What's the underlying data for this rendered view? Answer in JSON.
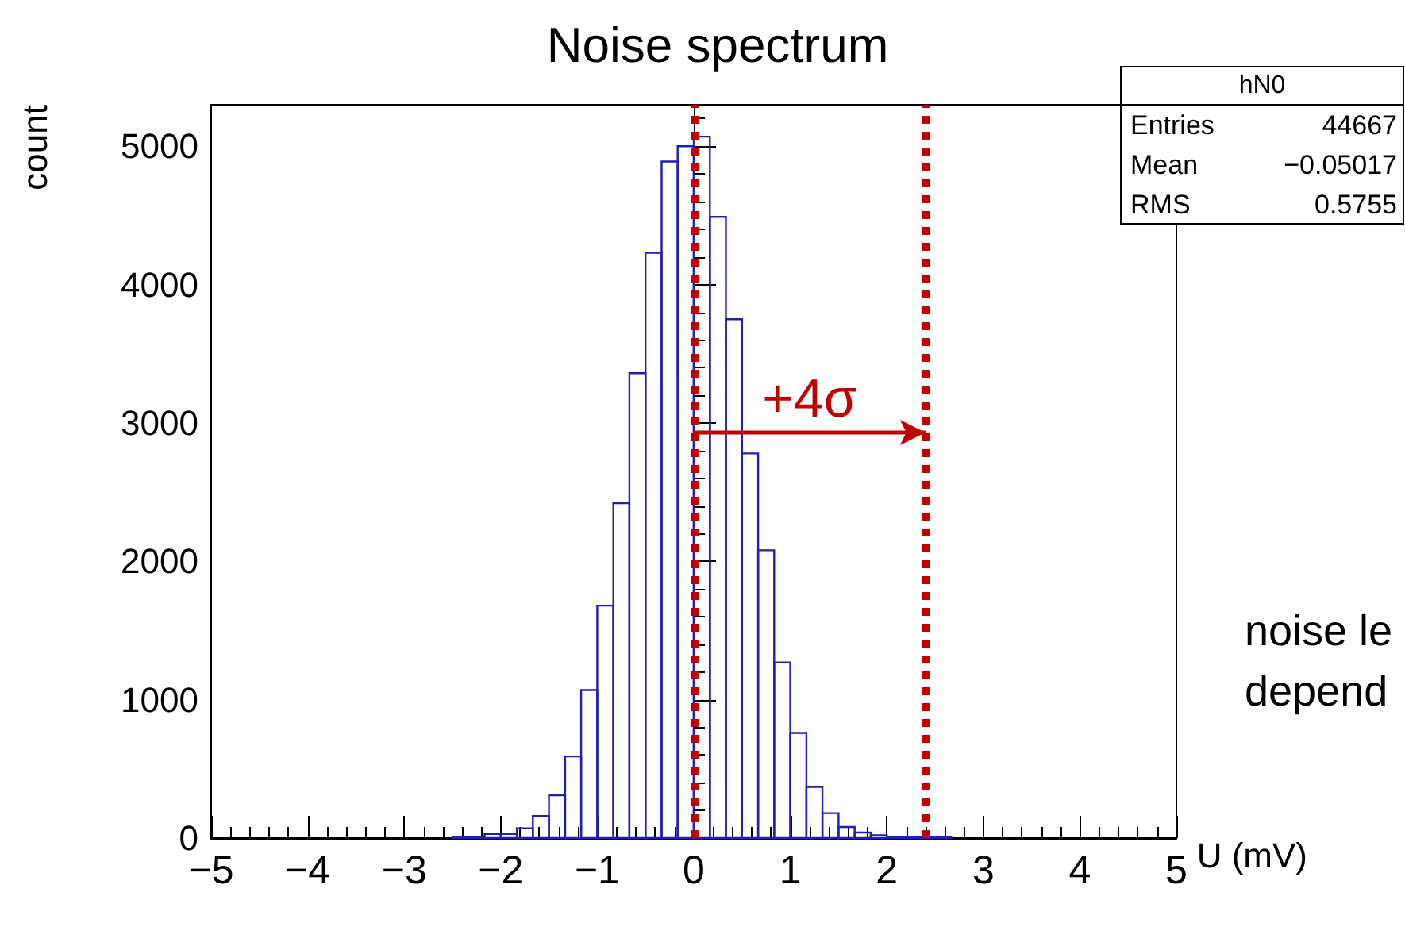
{
  "chart_data": {
    "type": "histogram",
    "title": "Noise spectrum",
    "xlabel": "U (mV)",
    "ylabel": "count",
    "color": "#2020b0",
    "bins": [
      -2.5,
      -2.333,
      -2.167,
      -2.0,
      -1.833,
      -1.667,
      -1.5,
      -1.333,
      -1.167,
      -1.0,
      -0.833,
      -0.667,
      -0.5,
      -0.333,
      -0.167,
      0,
      0.167,
      0.333,
      0.5,
      0.667,
      0.833,
      1.0,
      1.167,
      1.333,
      1.5,
      1.667,
      1.833,
      2.0,
      2.167,
      2.333,
      2.5,
      2.667
    ],
    "values": [
      10,
      10,
      30,
      30,
      70,
      160,
      310,
      590,
      1070,
      1680,
      2420,
      3360,
      4230,
      4890,
      5000,
      5070,
      4490,
      3750,
      2780,
      2080,
      1270,
      760,
      370,
      180,
      80,
      40,
      20,
      10,
      10,
      10,
      10
    ],
    "xlim": [
      -5,
      5
    ],
    "xticks": [
      -5,
      -4,
      -3,
      -2,
      -1,
      0,
      1,
      2,
      3,
      4,
      5
    ],
    "ylim": [
      0,
      5300
    ],
    "yticks": [
      0,
      1000,
      2000,
      3000,
      4000,
      5000
    ],
    "grid": false,
    "ref_lines": [
      {
        "axis": "x",
        "value": 0,
        "color": "#c00000",
        "line_style": "dotted"
      },
      {
        "axis": "x",
        "value": 2.4,
        "color": "#c00000",
        "line_style": "dotted"
      }
    ],
    "annotations": [
      "+4σ",
      "hN0",
      "Entries",
      "44667",
      "Mean",
      "−0.05017",
      "RMS",
      "0.5755",
      "noise le",
      "depend"
    ]
  }
}
